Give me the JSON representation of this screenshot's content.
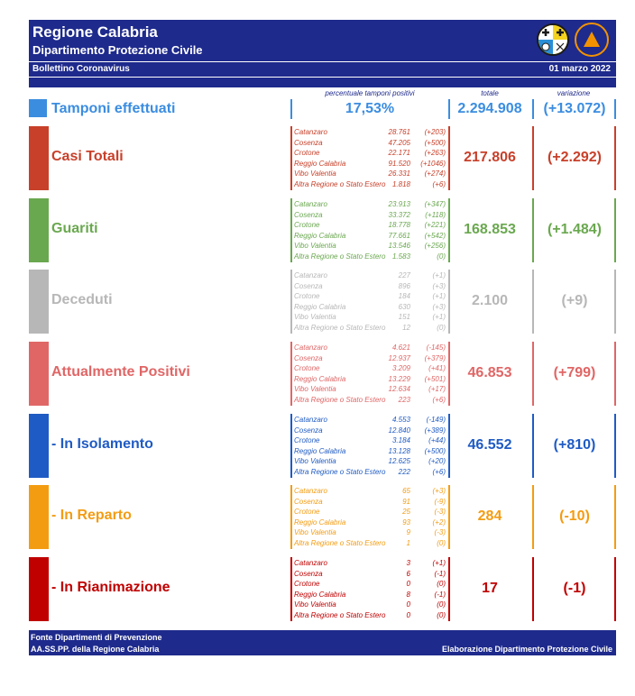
{
  "header": {
    "title": "Regione Calabria",
    "subtitle": "Dipartimento Protezione Civile",
    "bulletin": "Bollettino Coronavirus",
    "date": "01 marzo 2022"
  },
  "columns": {
    "percent_label": "percentuale tamponi positivi",
    "total_label": "totale",
    "variation_label": "variazione"
  },
  "tamponi": {
    "label": "Tamponi effettuati",
    "percent": "17,53%",
    "total": "2.294.908",
    "variation": "(+13.072)",
    "color": "#3b8de0"
  },
  "rows": [
    {
      "label": "Casi Totali",
      "color": "#c8402a",
      "total": "217.806",
      "variation": "(+2.292)",
      "provinces": [
        {
          "name": "Catanzaro",
          "value": "28.761",
          "delta": "(+203)"
        },
        {
          "name": "Cosenza",
          "value": "47.205",
          "delta": "(+500)"
        },
        {
          "name": "Crotone",
          "value": "22.171",
          "delta": "(+263)"
        },
        {
          "name": "Reggio Calabria",
          "value": "91.520",
          "delta": "(+1046)"
        },
        {
          "name": "Vibo Valentia",
          "value": "26.331",
          "delta": "(+274)"
        },
        {
          "name": "Altra Regione o Stato Estero",
          "value": "1.818",
          "delta": "(+6)"
        }
      ]
    },
    {
      "label": "Guariti",
      "color": "#6aa84f",
      "total": "168.853",
      "variation": "(+1.484)",
      "provinces": [
        {
          "name": "Catanzaro",
          "value": "23.913",
          "delta": "(+347)"
        },
        {
          "name": "Cosenza",
          "value": "33.372",
          "delta": "(+118)"
        },
        {
          "name": "Crotone",
          "value": "18.778",
          "delta": "(+221)"
        },
        {
          "name": "Reggio Calabria",
          "value": "77.661",
          "delta": "(+542)"
        },
        {
          "name": "Vibo Valentia",
          "value": "13.546",
          "delta": "(+256)"
        },
        {
          "name": "Altra Regione o Stato Estero",
          "value": "1.583",
          "delta": "(0)"
        }
      ]
    },
    {
      "label": "Deceduti",
      "color": "#b7b7b7",
      "total": "2.100",
      "variation": "(+9)",
      "provinces": [
        {
          "name": "Catanzaro",
          "value": "227",
          "delta": "(+1)"
        },
        {
          "name": "Cosenza",
          "value": "896",
          "delta": "(+3)"
        },
        {
          "name": "Crotone",
          "value": "184",
          "delta": "(+1)"
        },
        {
          "name": "Reggio Calabria",
          "value": "630",
          "delta": "(+3)"
        },
        {
          "name": "Vibo Valentia",
          "value": "151",
          "delta": "(+1)"
        },
        {
          "name": "Altra Regione o Stato Estero",
          "value": "12",
          "delta": "(0)"
        }
      ]
    },
    {
      "label": "Attualmente Positivi",
      "color": "#e06666",
      "total": "46.853",
      "variation": "(+799)",
      "provinces": [
        {
          "name": "Catanzaro",
          "value": "4.621",
          "delta": "(-145)"
        },
        {
          "name": "Cosenza",
          "value": "12.937",
          "delta": "(+379)"
        },
        {
          "name": "Crotone",
          "value": "3.209",
          "delta": "(+41)"
        },
        {
          "name": "Reggio Calabria",
          "value": "13.229",
          "delta": "(+501)"
        },
        {
          "name": "Vibo Valentia",
          "value": "12.634",
          "delta": "(+17)"
        },
        {
          "name": "Altra Regione o Stato Estero",
          "value": "223",
          "delta": "(+6)"
        }
      ]
    },
    {
      "label": "- In Isolamento",
      "color": "#1f5bc4",
      "total": "46.552",
      "variation": "(+810)",
      "provinces": [
        {
          "name": "Catanzaro",
          "value": "4.553",
          "delta": "(-149)"
        },
        {
          "name": "Cosenza",
          "value": "12.840",
          "delta": "(+389)"
        },
        {
          "name": "Crotone",
          "value": "3.184",
          "delta": "(+44)"
        },
        {
          "name": "Reggio Calabria",
          "value": "13.128",
          "delta": "(+500)"
        },
        {
          "name": "Vibo Valentia",
          "value": "12.625",
          "delta": "(+20)"
        },
        {
          "name": "Altra Regione o Stato Estero",
          "value": "222",
          "delta": "(+6)"
        }
      ]
    },
    {
      "label": "- In Reparto",
      "color": "#f39c12",
      "total": "284",
      "variation": "(-10)",
      "provinces": [
        {
          "name": "Catanzaro",
          "value": "65",
          "delta": "(+3)"
        },
        {
          "name": "Cosenza",
          "value": "91",
          "delta": "(-9)"
        },
        {
          "name": "Crotone",
          "value": "25",
          "delta": "(-3)"
        },
        {
          "name": "Reggio Calabria",
          "value": "93",
          "delta": "(+2)"
        },
        {
          "name": "Vibo Valentia",
          "value": "9",
          "delta": "(-3)"
        },
        {
          "name": "Altra Regione o Stato Estero",
          "value": "1",
          "delta": "(0)"
        }
      ]
    },
    {
      "label": "- In Rianimazione",
      "color": "#c00000",
      "total": "17",
      "variation": "(-1)",
      "provinces": [
        {
          "name": "Catanzaro",
          "value": "3",
          "delta": "(+1)"
        },
        {
          "name": "Cosenza",
          "value": "6",
          "delta": "(-1)"
        },
        {
          "name": "Crotone",
          "value": "0",
          "delta": "(0)"
        },
        {
          "name": "Reggio Calabria",
          "value": "8",
          "delta": "(-1)"
        },
        {
          "name": "Vibo Valentia",
          "value": "0",
          "delta": "(0)"
        },
        {
          "name": "Altra Regione o Stato Estero",
          "value": "0",
          "delta": "(0)"
        }
      ]
    }
  ],
  "footer": {
    "line1": "Fonte Dipartimenti di Prevenzione",
    "line2": "AA.SS.PP.  della Regione Calabria",
    "credit": "Elaborazione Dipartimento Protezione Civile"
  }
}
